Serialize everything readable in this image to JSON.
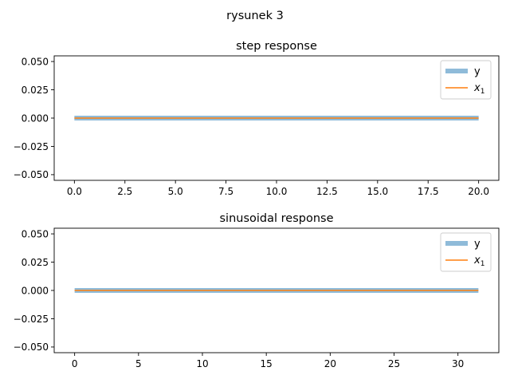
{
  "figure": {
    "suptitle": "rysunek 3"
  },
  "chart_data": [
    {
      "type": "line",
      "title": "step response",
      "xlabel": "",
      "ylabel": "",
      "xlim": [
        -1.0,
        21.0
      ],
      "ylim": [
        -0.055,
        0.055
      ],
      "xticks": [
        0.0,
        2.5,
        5.0,
        7.5,
        10.0,
        12.5,
        15.0,
        17.5,
        20.0
      ],
      "xtick_labels": [
        "0.0",
        "2.5",
        "5.0",
        "7.5",
        "10.0",
        "12.5",
        "15.0",
        "17.5",
        "20.0"
      ],
      "yticks": [
        -0.05,
        -0.025,
        0.0,
        0.025,
        0.05
      ],
      "ytick_labels": [
        "−0.050",
        "−0.025",
        "0.000",
        "0.025",
        "0.050"
      ],
      "grid": false,
      "legend_position": "upper right",
      "series": [
        {
          "name": "y",
          "color": "#1f77b4",
          "alpha": 0.5,
          "style": "thick",
          "x": [
            0,
            20
          ],
          "y": [
            0,
            0
          ]
        },
        {
          "name_main": "x",
          "name_sub": "1",
          "color": "#ff7f0e",
          "style": "thin",
          "x": [
            0,
            20
          ],
          "y": [
            0,
            0
          ]
        }
      ]
    },
    {
      "type": "line",
      "title": "sinusoidal response",
      "xlabel": "",
      "ylabel": "",
      "xlim": [
        -1.6,
        33.2
      ],
      "ylim": [
        -0.055,
        0.055
      ],
      "xticks": [
        0,
        5,
        10,
        15,
        20,
        25,
        30
      ],
      "xtick_labels": [
        "0",
        "5",
        "10",
        "15",
        "20",
        "25",
        "30"
      ],
      "yticks": [
        -0.05,
        -0.025,
        0.0,
        0.025,
        0.05
      ],
      "ytick_labels": [
        "−0.050",
        "−0.025",
        "0.000",
        "0.025",
        "0.050"
      ],
      "grid": false,
      "legend_position": "upper right",
      "series": [
        {
          "name": "y",
          "color": "#1f77b4",
          "alpha": 0.5,
          "style": "thick",
          "x": [
            0,
            31.6
          ],
          "y": [
            0,
            0
          ]
        },
        {
          "name_main": "x",
          "name_sub": "1",
          "color": "#ff7f0e",
          "style": "thin",
          "x": [
            0,
            31.6
          ],
          "y": [
            0,
            0
          ]
        }
      ]
    }
  ]
}
